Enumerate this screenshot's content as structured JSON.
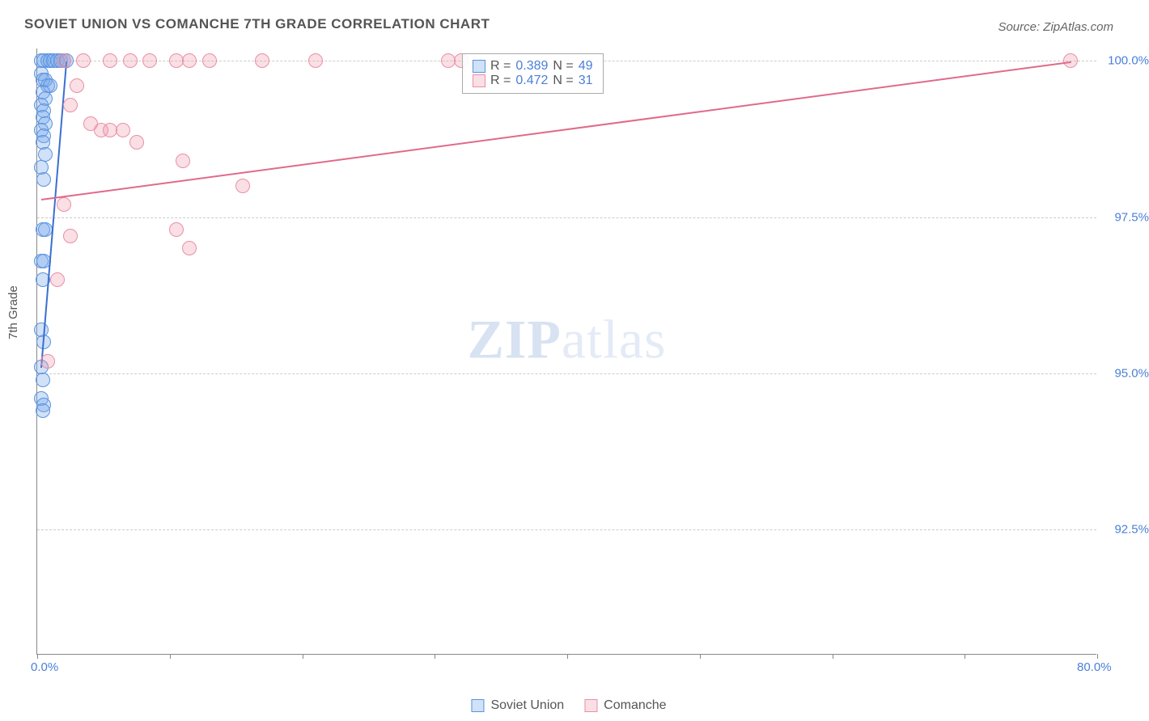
{
  "title": "SOVIET UNION VS COMANCHE 7TH GRADE CORRELATION CHART",
  "source_label": "Source: ZipAtlas.com",
  "ylabel": "7th Grade",
  "watermark": {
    "part1": "ZIP",
    "part2": "atlas"
  },
  "chart": {
    "type": "scatter",
    "background_color": "#ffffff",
    "grid_color": "#cccccc",
    "axis_color": "#888888",
    "text_color": "#555555",
    "value_color": "#4a7fd8",
    "xlim": [
      0,
      80
    ],
    "ylim": [
      90.5,
      100.2
    ],
    "xtick_positions": [
      0,
      10,
      20,
      30,
      40,
      50,
      60,
      70,
      80
    ],
    "xtick_labels": {
      "0": "0.0%",
      "80": "80.0%"
    },
    "ytick_positions": [
      92.5,
      95.0,
      97.5,
      100.0
    ],
    "ytick_labels": [
      "92.5%",
      "95.0%",
      "97.5%",
      "100.0%"
    ],
    "marker_radius": 9,
    "marker_stroke_width": 1.5,
    "series": [
      {
        "name": "Soviet Union",
        "fill_color": "rgba(120,170,235,0.35)",
        "stroke_color": "#5b93e0",
        "R": "0.389",
        "N": "49",
        "trend": {
          "x1": 0.3,
          "y1": 95.1,
          "x2": 2.2,
          "y2": 100.0,
          "color": "#3a6fd0",
          "width": 2
        },
        "points": [
          [
            0.3,
            100.0
          ],
          [
            0.5,
            100.0
          ],
          [
            0.8,
            100.0
          ],
          [
            1.0,
            100.0
          ],
          [
            1.2,
            100.0
          ],
          [
            1.5,
            100.0
          ],
          [
            1.8,
            100.0
          ],
          [
            2.0,
            100.0
          ],
          [
            2.2,
            100.0
          ],
          [
            0.3,
            99.8
          ],
          [
            0.4,
            99.7
          ],
          [
            0.6,
            99.7
          ],
          [
            0.8,
            99.6
          ],
          [
            1.0,
            99.6
          ],
          [
            0.4,
            99.5
          ],
          [
            0.6,
            99.4
          ],
          [
            0.3,
            99.3
          ],
          [
            0.5,
            99.2
          ],
          [
            0.4,
            99.1
          ],
          [
            0.6,
            99.0
          ],
          [
            0.3,
            98.9
          ],
          [
            0.5,
            98.8
          ],
          [
            0.4,
            98.7
          ],
          [
            0.6,
            98.5
          ],
          [
            0.3,
            98.3
          ],
          [
            0.5,
            98.1
          ],
          [
            0.4,
            97.3
          ],
          [
            0.6,
            97.3
          ],
          [
            0.3,
            96.8
          ],
          [
            0.5,
            96.8
          ],
          [
            0.4,
            96.5
          ],
          [
            0.3,
            95.7
          ],
          [
            0.5,
            95.5
          ],
          [
            0.3,
            95.1
          ],
          [
            0.4,
            94.9
          ],
          [
            0.3,
            94.6
          ],
          [
            0.5,
            94.5
          ],
          [
            0.4,
            94.4
          ]
        ]
      },
      {
        "name": "Comanche",
        "fill_color": "rgba(240,150,170,0.30)",
        "stroke_color": "#e890a5",
        "R": "0.472",
        "N": "31",
        "trend": {
          "x1": 0.3,
          "y1": 97.8,
          "x2": 78,
          "y2": 100.0,
          "color": "#e06a8a",
          "width": 2
        },
        "points": [
          [
            2.0,
            100.0
          ],
          [
            3.5,
            100.0
          ],
          [
            5.5,
            100.0
          ],
          [
            7.0,
            100.0
          ],
          [
            8.5,
            100.0
          ],
          [
            10.5,
            100.0
          ],
          [
            11.5,
            100.0
          ],
          [
            13.0,
            100.0
          ],
          [
            17.0,
            100.0
          ],
          [
            21.0,
            100.0
          ],
          [
            31.0,
            100.0
          ],
          [
            32.0,
            100.0
          ],
          [
            78.0,
            100.0
          ],
          [
            3.0,
            99.6
          ],
          [
            2.5,
            99.3
          ],
          [
            4.0,
            99.0
          ],
          [
            4.8,
            98.9
          ],
          [
            5.5,
            98.9
          ],
          [
            6.5,
            98.9
          ],
          [
            7.5,
            98.7
          ],
          [
            11.0,
            98.4
          ],
          [
            15.5,
            98.0
          ],
          [
            2.0,
            97.7
          ],
          [
            2.5,
            97.2
          ],
          [
            10.5,
            97.3
          ],
          [
            11.5,
            97.0
          ],
          [
            1.5,
            96.5
          ],
          [
            0.8,
            95.2
          ]
        ]
      }
    ]
  },
  "legend_bottom": [
    {
      "label": "Soviet Union",
      "fill": "rgba(120,170,235,0.35)",
      "stroke": "#5b93e0"
    },
    {
      "label": "Comanche",
      "fill": "rgba(240,150,170,0.30)",
      "stroke": "#e890a5"
    }
  ]
}
